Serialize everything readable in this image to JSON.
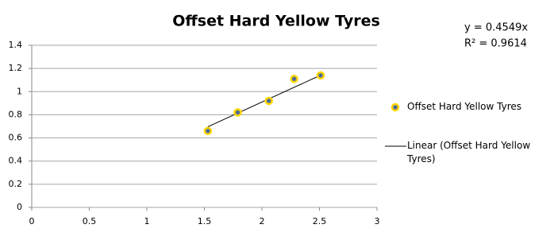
{
  "chart_data": {
    "type": "scatter",
    "title": "Offset Hard Yellow Tyres",
    "series": [
      {
        "name": "Offset Hard Yellow Tyres",
        "color": "#4f6d9a",
        "edge_color": "#ffd700",
        "x": [
          1.53,
          1.79,
          2.06,
          2.28,
          2.51
        ],
        "values": [
          0.66,
          0.82,
          0.92,
          1.11,
          1.14
        ]
      }
    ],
    "trendline": {
      "name": "Linear (Offset Hard Yellow Tyres)",
      "color": "#000000",
      "equation": {
        "value": 0.4549,
        "label": "y = 0.4549x"
      },
      "r_squared": {
        "value": 0.9614,
        "label": "R² = 0.9614"
      }
    },
    "xlim": [
      0,
      3
    ],
    "xticks": [
      0,
      0.5,
      1,
      1.5,
      2,
      2.5,
      3
    ],
    "ylim": [
      0,
      1.4
    ],
    "yticks": [
      0,
      0.2,
      0.4,
      0.6,
      0.8,
      1,
      1.2,
      1.4
    ],
    "grid": true,
    "legend": "right"
  }
}
